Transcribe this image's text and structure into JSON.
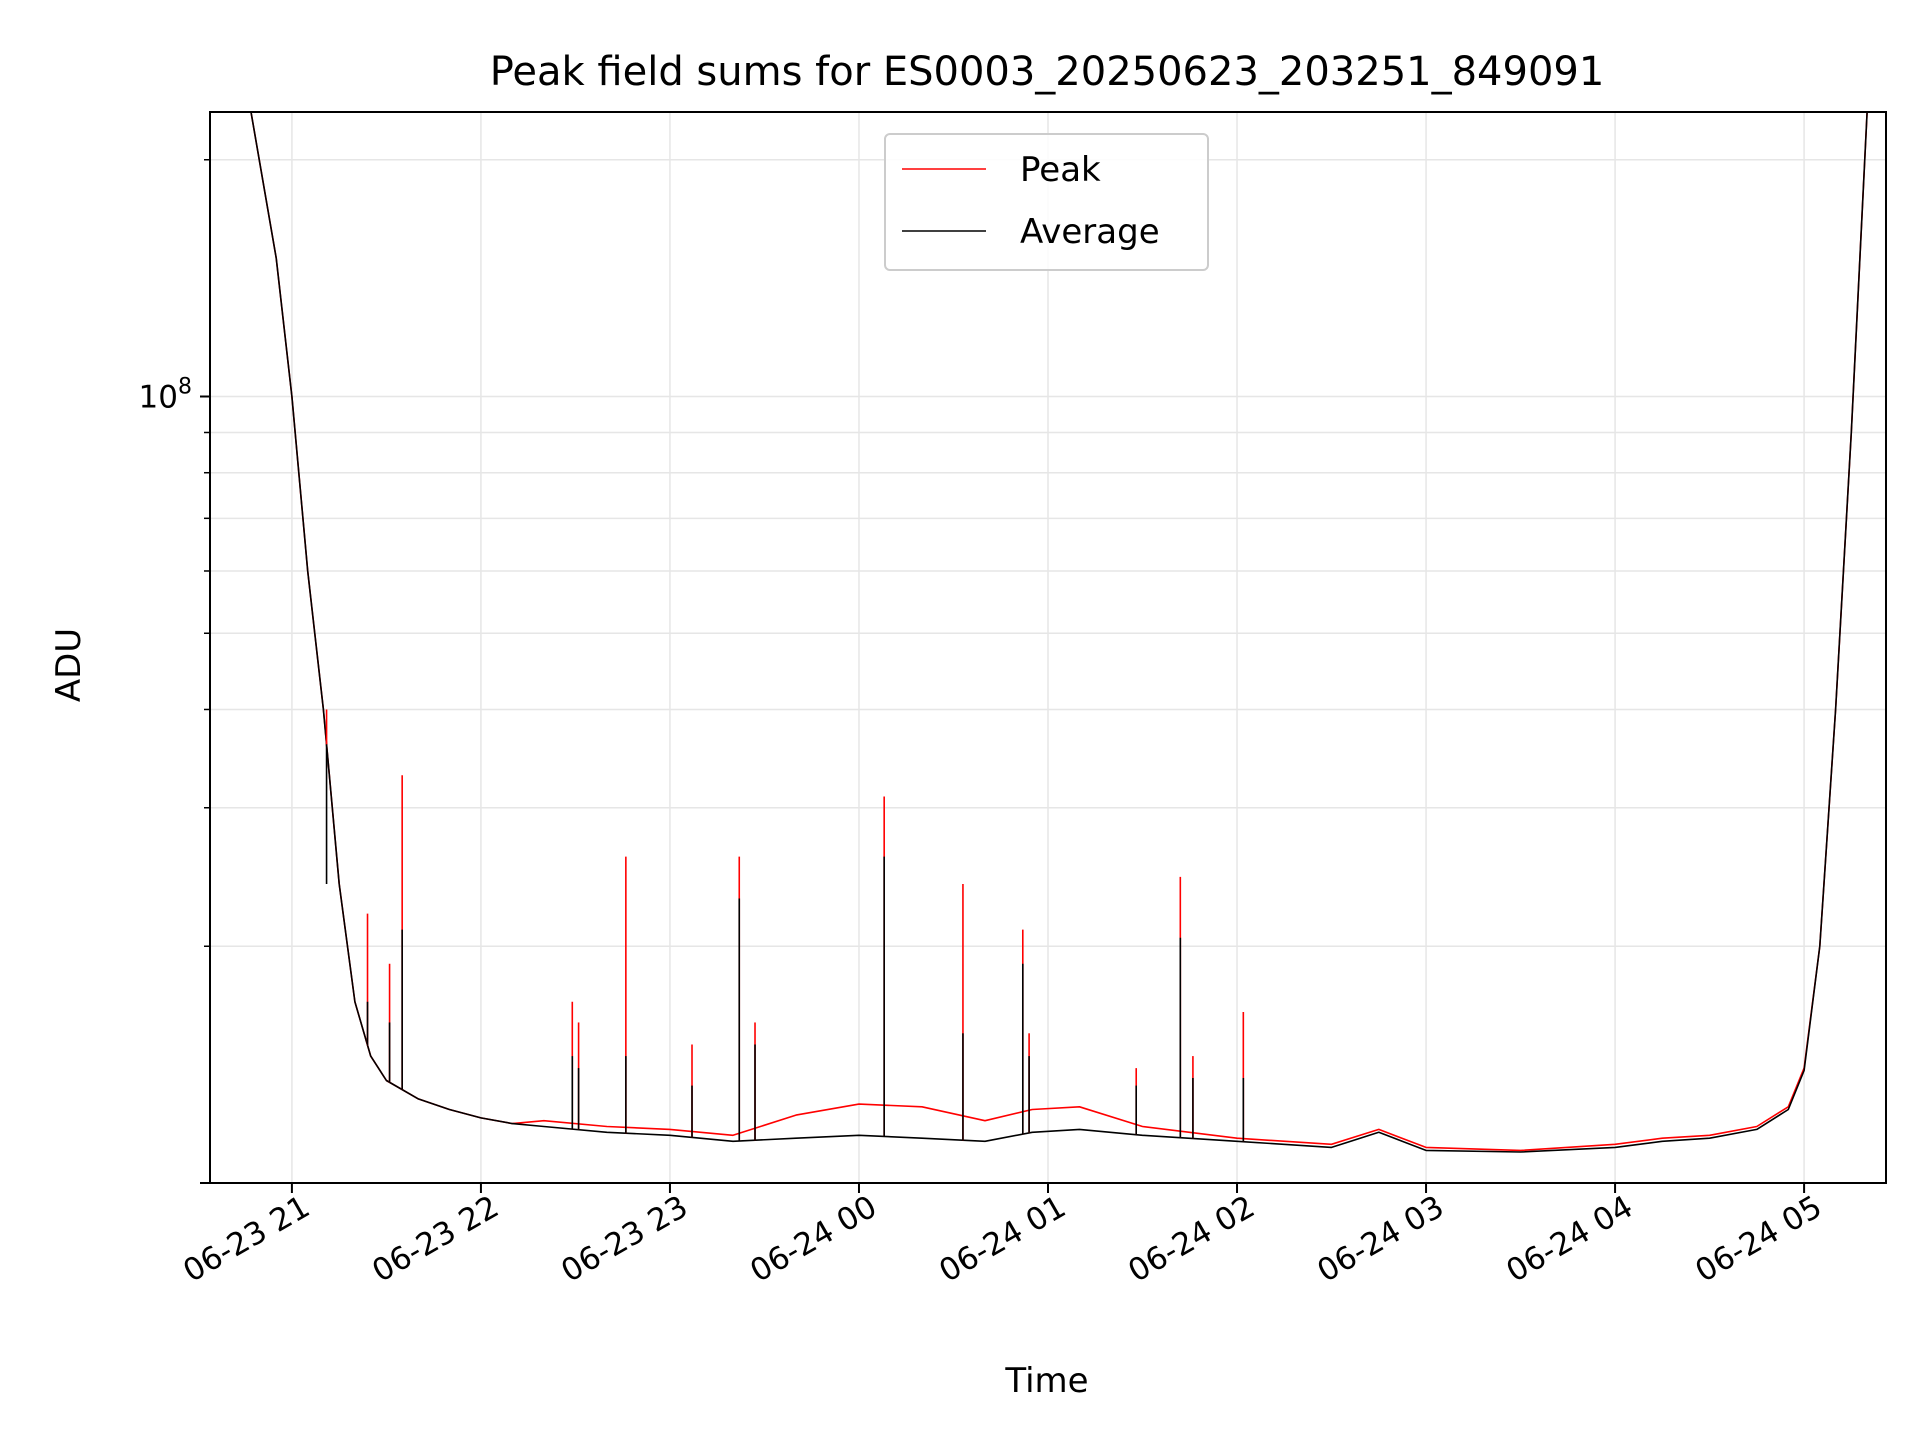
{
  "chart_data": {
    "type": "line",
    "title": "Peak field sums for ES0003_20250623_203251_849091",
    "xlabel": "Time",
    "ylabel": "ADU",
    "yscale": "log",
    "grid": true,
    "legend_position": "top-center",
    "x_tick_labels": [
      "06-23 21",
      "06-23 22",
      "06-23 23",
      "06-24 00",
      "06-24 01",
      "06-24 02",
      "06-24 03",
      "06-24 04",
      "06-24 05"
    ],
    "x_ticks": [
      "2025-06-23 21:00",
      "2025-06-23 22:00",
      "2025-06-23 23:00",
      "2025-06-24 00:00",
      "2025-06-24 01:00",
      "2025-06-24 02:00",
      "2025-06-24 03:00",
      "2025-06-24 04:00",
      "2025-06-24 05:00"
    ],
    "xlim": [
      "2025-06-23 20:34",
      "2025-06-24 05:26"
    ],
    "y_tick_labels": [
      {
        "base": "10",
        "exp": "8",
        "value": 100000000
      }
    ],
    "ylim": [
      10000000,
      230000000
    ],
    "series": [
      {
        "name": "Peak",
        "color": "#ff0000",
        "x": [
          "2025-06-23 20:47",
          "2025-06-23 20:55",
          "2025-06-23 21:00",
          "2025-06-23 21:05",
          "2025-06-23 21:10",
          "2025-06-23 21:15",
          "2025-06-23 21:20",
          "2025-06-23 21:25",
          "2025-06-23 21:30",
          "2025-06-23 21:40",
          "2025-06-23 21:50",
          "2025-06-23 22:00",
          "2025-06-23 22:10",
          "2025-06-23 22:20",
          "2025-06-23 22:40",
          "2025-06-23 23:00",
          "2025-06-23 23:20",
          "2025-06-23 23:40",
          "2025-06-24 00:00",
          "2025-06-24 00:20",
          "2025-06-24 00:40",
          "2025-06-24 00:55",
          "2025-06-24 01:10",
          "2025-06-24 01:30",
          "2025-06-24 02:00",
          "2025-06-24 02:30",
          "2025-06-24 02:45",
          "2025-06-24 03:00",
          "2025-06-24 03:30",
          "2025-06-24 04:00",
          "2025-06-24 04:15",
          "2025-06-24 04:30",
          "2025-06-24 04:45",
          "2025-06-24 04:55",
          "2025-06-24 05:00",
          "2025-06-24 05:05",
          "2025-06-24 05:10",
          "2025-06-24 05:15",
          "2025-06-24 05:20"
        ],
        "y": [
          230000000,
          150000000,
          100000000,
          60000000,
          40000000,
          24000000,
          17000000,
          14500000,
          13500000,
          12800000,
          12400000,
          12100000,
          11900000,
          12000000,
          11800000,
          11700000,
          11500000,
          12200000,
          12600000,
          12500000,
          12000000,
          12400000,
          12500000,
          11800000,
          11400000,
          11200000,
          11700000,
          11100000,
          11000000,
          11200000,
          11400000,
          11500000,
          11800000,
          12500000,
          14000000,
          20000000,
          40000000,
          90000000,
          230000000
        ]
      },
      {
        "name": "Average",
        "color": "#000000",
        "x": [
          "2025-06-23 20:47",
          "2025-06-23 20:55",
          "2025-06-23 21:00",
          "2025-06-23 21:05",
          "2025-06-23 21:10",
          "2025-06-23 21:15",
          "2025-06-23 21:20",
          "2025-06-23 21:25",
          "2025-06-23 21:30",
          "2025-06-23 21:40",
          "2025-06-23 21:50",
          "2025-06-23 22:00",
          "2025-06-23 22:10",
          "2025-06-23 22:20",
          "2025-06-23 22:40",
          "2025-06-23 23:00",
          "2025-06-23 23:20",
          "2025-06-23 23:40",
          "2025-06-24 00:00",
          "2025-06-24 00:20",
          "2025-06-24 00:40",
          "2025-06-24 00:55",
          "2025-06-24 01:10",
          "2025-06-24 01:30",
          "2025-06-24 02:00",
          "2025-06-24 02:30",
          "2025-06-24 02:45",
          "2025-06-24 03:00",
          "2025-06-24 03:30",
          "2025-06-24 04:00",
          "2025-06-24 04:15",
          "2025-06-24 04:30",
          "2025-06-24 04:45",
          "2025-06-24 04:55",
          "2025-06-24 05:00",
          "2025-06-24 05:05",
          "2025-06-24 05:10",
          "2025-06-24 05:15",
          "2025-06-24 05:20"
        ],
        "y": [
          230000000,
          150000000,
          100000000,
          60000000,
          40000000,
          24000000,
          17000000,
          14500000,
          13500000,
          12800000,
          12400000,
          12100000,
          11900000,
          11800000,
          11600000,
          11500000,
          11300000,
          11400000,
          11500000,
          11400000,
          11300000,
          11600000,
          11700000,
          11500000,
          11300000,
          11100000,
          11600000,
          11000000,
          10950000,
          11100000,
          11300000,
          11400000,
          11700000,
          12400000,
          13900000,
          20000000,
          40000000,
          90000000,
          230000000
        ]
      }
    ],
    "spikes": {
      "x": [
        "2025-06-23 21:11",
        "2025-06-23 21:24",
        "2025-06-23 21:31",
        "2025-06-23 21:35",
        "2025-06-23 22:29",
        "2025-06-23 22:31",
        "2025-06-23 22:46",
        "2025-06-23 23:07",
        "2025-06-23 23:22",
        "2025-06-23 23:27",
        "2025-06-24 00:08",
        "2025-06-24 00:33",
        "2025-06-24 00:52",
        "2025-06-24 00:54",
        "2025-06-24 01:28",
        "2025-06-24 01:42",
        "2025-06-24 01:46",
        "2025-06-24 02:02"
      ],
      "peak": [
        40000000,
        22000000,
        19000000,
        33000000,
        17000000,
        16000000,
        26000000,
        15000000,
        26000000,
        16000000,
        31000000,
        24000000,
        21000000,
        15500000,
        14000000,
        24500000,
        14500000,
        16500000
      ],
      "average": [
        24000000,
        17000000,
        16000000,
        21000000,
        14500000,
        14000000,
        14500000,
        13300000,
        23000000,
        15000000,
        26000000,
        15500000,
        19000000,
        14500000,
        13300000,
        20500000,
        13600000,
        13600000
      ]
    }
  }
}
